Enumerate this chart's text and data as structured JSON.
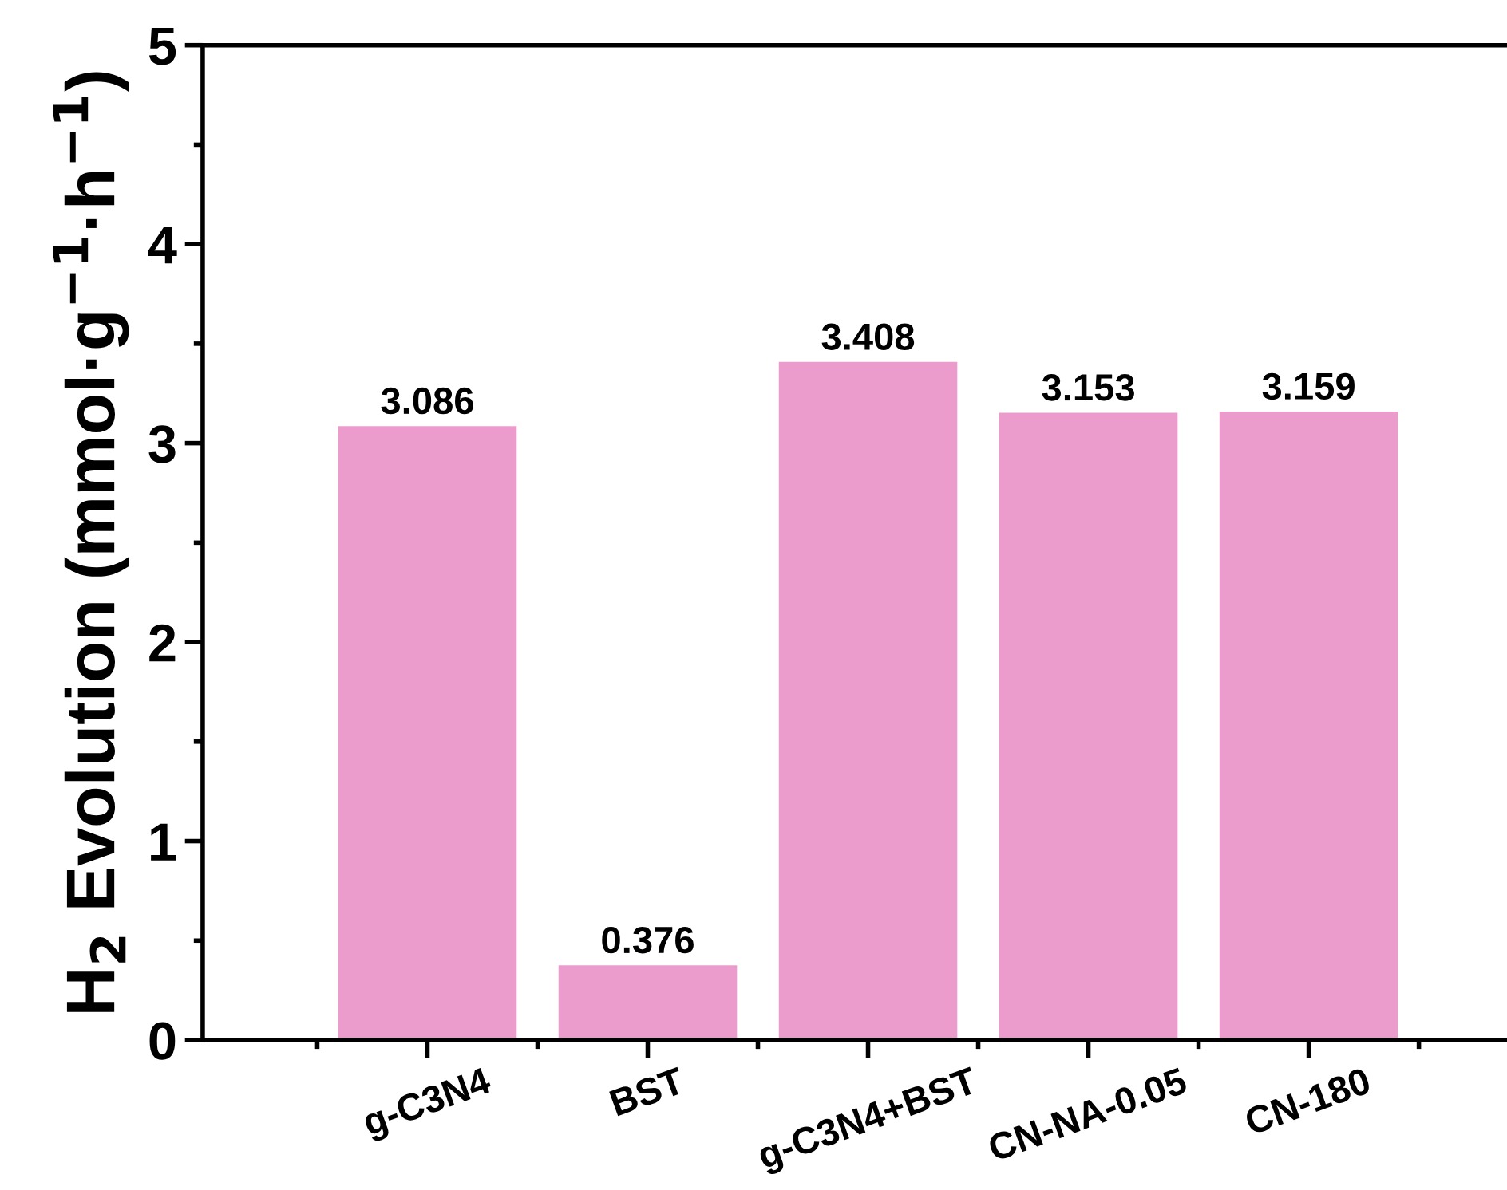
{
  "chart_data": {
    "type": "bar",
    "ylabel": "H$_{2}$ Evolution (mmol·g$^{−1}$·h$^{−1}$)",
    "categories": [
      "g-C3N4",
      "BST",
      "g-C3N4+BST",
      "CN-NA-0.05",
      "CN-180"
    ],
    "values": [
      3.086,
      0.376,
      3.408,
      3.153,
      3.159
    ],
    "color": "#eb9ccd",
    "data_labels": true,
    "ylim": [
      0,
      5
    ],
    "yticks": [
      0,
      1,
      2,
      3,
      4,
      5
    ],
    "grid": false
  }
}
